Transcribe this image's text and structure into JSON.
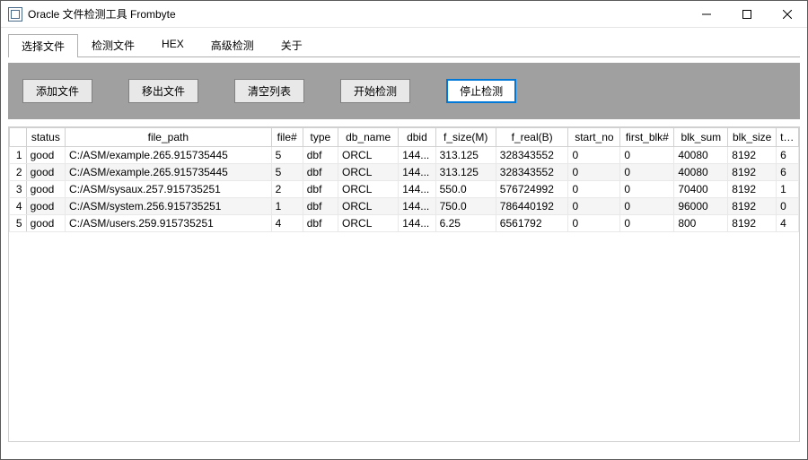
{
  "window": {
    "title": "Oracle 文件检测工具 Frombyte"
  },
  "tabs": [
    {
      "label": "选择文件",
      "active": true
    },
    {
      "label": "检测文件",
      "active": false
    },
    {
      "label": "HEX",
      "active": false
    },
    {
      "label": "高级检测",
      "active": false
    },
    {
      "label": "关于",
      "active": false
    }
  ],
  "toolbar": {
    "add_file": "添加文件",
    "remove_file": "移出文件",
    "clear_list": "清空列表",
    "start_check": "开始检测",
    "stop_check": "停止检测"
  },
  "table": {
    "columns": [
      "status",
      "file_path",
      "file#",
      "type",
      "db_name",
      "dbid",
      "f_size(M)",
      "f_real(B)",
      "start_no",
      "first_blk#",
      "blk_sum",
      "blk_size",
      "ts#"
    ],
    "rows": [
      {
        "n": "1",
        "status": "good",
        "file_path": "C:/ASM/example.265.915735445",
        "file": "5",
        "type": "dbf",
        "db_name": "ORCL",
        "dbid": "144...",
        "f_size": "313.125",
        "f_real": "328343552",
        "start_no": "0",
        "first_blk": "0",
        "blk_sum": "40080",
        "blk_size": "8192",
        "ts": "6"
      },
      {
        "n": "2",
        "status": "good",
        "file_path": "C:/ASM/example.265.915735445",
        "file": "5",
        "type": "dbf",
        "db_name": "ORCL",
        "dbid": "144...",
        "f_size": "313.125",
        "f_real": "328343552",
        "start_no": "0",
        "first_blk": "0",
        "blk_sum": "40080",
        "blk_size": "8192",
        "ts": "6"
      },
      {
        "n": "3",
        "status": "good",
        "file_path": "C:/ASM/sysaux.257.915735251",
        "file": "2",
        "type": "dbf",
        "db_name": "ORCL",
        "dbid": "144...",
        "f_size": "550.0",
        "f_real": "576724992",
        "start_no": "0",
        "first_blk": "0",
        "blk_sum": "70400",
        "blk_size": "8192",
        "ts": "1"
      },
      {
        "n": "4",
        "status": "good",
        "file_path": "C:/ASM/system.256.915735251",
        "file": "1",
        "type": "dbf",
        "db_name": "ORCL",
        "dbid": "144...",
        "f_size": "750.0",
        "f_real": "786440192",
        "start_no": "0",
        "first_blk": "0",
        "blk_sum": "96000",
        "blk_size": "8192",
        "ts": "0"
      },
      {
        "n": "5",
        "status": "good",
        "file_path": "C:/ASM/users.259.915735251",
        "file": "4",
        "type": "dbf",
        "db_name": "ORCL",
        "dbid": "144...",
        "f_size": "6.25",
        "f_real": "6561792",
        "start_no": "0",
        "first_blk": "0",
        "blk_sum": "800",
        "blk_size": "8192",
        "ts": "4"
      }
    ]
  }
}
